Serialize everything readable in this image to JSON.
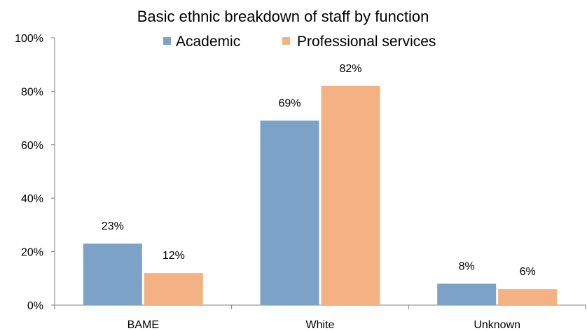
{
  "chart_data": {
    "type": "bar",
    "title": "Basic ethnic breakdown of staff by function",
    "categories": [
      "BAME",
      "White",
      "Unknown"
    ],
    "series": [
      {
        "name": "Academic",
        "values": [
          23,
          69,
          8
        ],
        "labels": [
          "23%",
          "69%",
          "8%"
        ],
        "color": "#7da2c8"
      },
      {
        "name": "Professional services",
        "values": [
          12,
          82,
          6
        ],
        "labels": [
          "12%",
          "82%",
          "6%"
        ],
        "color": "#f4b183"
      }
    ],
    "ylim": [
      0,
      100
    ],
    "yticks": [
      0,
      20,
      40,
      60,
      80,
      100
    ],
    "ytick_labels": [
      "0%",
      "20%",
      "40%",
      "60%",
      "80%",
      "100%"
    ],
    "xlabel": "",
    "ylabel": "",
    "grid": false,
    "legend_position": "top"
  }
}
